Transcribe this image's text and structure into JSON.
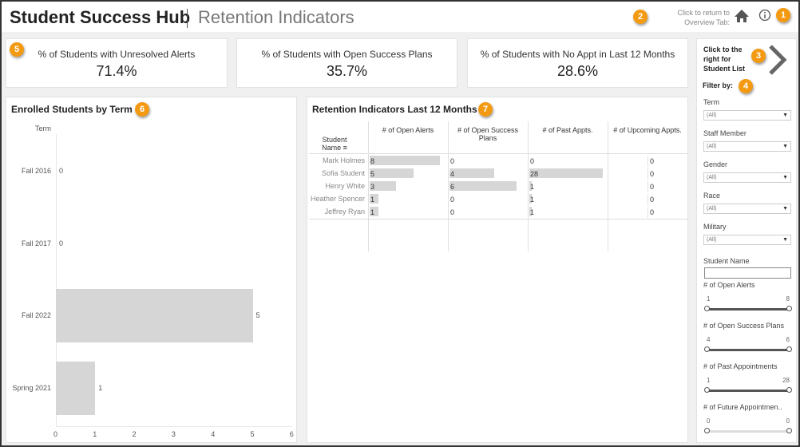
{
  "header": {
    "title": "Student Success Hub",
    "subtitle": "Retention Indicators",
    "return_text_line1": "Click to return to",
    "return_text_line2": "Overview Tab:"
  },
  "badges": [
    "1",
    "2",
    "3",
    "4",
    "5",
    "6",
    "7"
  ],
  "kpis": [
    {
      "label": "% of Students with Unresolved Alerts",
      "value": "71.4%"
    },
    {
      "label": "% of Students with Open Success Plans",
      "value": "35.7%"
    },
    {
      "label": "% of Students with No Appt in Last 12 Months",
      "value": "28.6%"
    }
  ],
  "sidebar": {
    "nav_line1": "Click to the",
    "nav_line2": "right for",
    "nav_line3": "Student List",
    "filter_by": "Filter by:",
    "dropdowns": [
      {
        "label": "Term",
        "value": "(All)"
      },
      {
        "label": "Staff Member",
        "value": "(All)"
      },
      {
        "label": "Gender",
        "value": "(All)"
      },
      {
        "label": "Race",
        "value": "(All)"
      },
      {
        "label": "Military",
        "value": "(All)"
      }
    ],
    "student_name_label": "Student Name",
    "student_name_value": "",
    "sliders": [
      {
        "label": "# of Open Alerts",
        "min": "1",
        "max": "8"
      },
      {
        "label": "# of Open Success Plans",
        "min": "4",
        "max": "6"
      },
      {
        "label": "# of Past Appointments",
        "min": "1",
        "max": "28"
      },
      {
        "label": "# of Future Appointmen..",
        "min": "0",
        "max": "0"
      }
    ]
  },
  "chart_data": {
    "type": "bar",
    "title": "Enrolled Students by Term",
    "ylabel": "Term",
    "categories": [
      "Fall 2016",
      "Fall 2017",
      "Fall 2022",
      "Spring 2021"
    ],
    "values": [
      0,
      0,
      5,
      1
    ],
    "xlim": [
      0,
      6
    ],
    "xticks": [
      "0",
      "1",
      "2",
      "3",
      "4",
      "5",
      "6"
    ],
    "orientation": "horizontal",
    "bar_color": "#d6d6d6"
  },
  "table": {
    "title": "Retention Indicators Last 12 Months",
    "name_header_line1": "Student",
    "name_header_line2": "Name",
    "columns": [
      "# of Open Alerts",
      "# of Open Success Plans",
      "# of Past Appts.",
      "# of Upcoming Appts."
    ],
    "rows": [
      {
        "name": "Mark Holmes",
        "values": [
          8,
          0,
          0,
          0
        ]
      },
      {
        "name": "Sofia Student",
        "values": [
          5,
          4,
          28,
          0
        ]
      },
      {
        "name": "Henry White",
        "values": [
          3,
          6,
          1,
          0
        ]
      },
      {
        "name": "Heather Spencer",
        "values": [
          1,
          0,
          1,
          0
        ]
      },
      {
        "name": "Jeffrey Ryan",
        "values": [
          1,
          0,
          1,
          0
        ]
      }
    ]
  }
}
